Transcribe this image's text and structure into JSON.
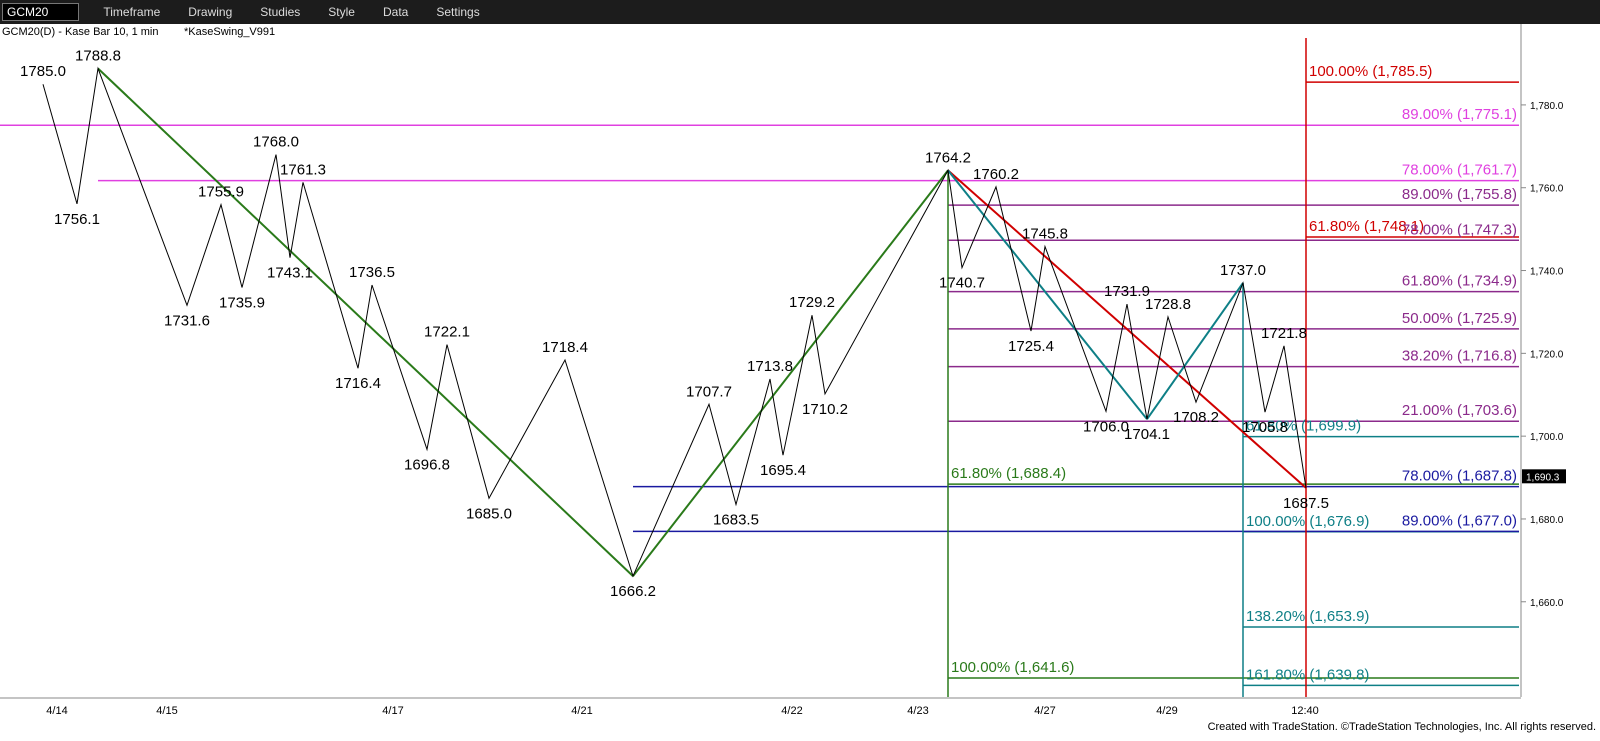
{
  "toolbar": {
    "symbol": "GCM20",
    "items": [
      "Timeframe",
      "Drawing",
      "Studies",
      "Style",
      "Data",
      "Settings"
    ]
  },
  "chart": {
    "title": "GCM20(D) - Kase Bar 10, 1 min",
    "study": "*KaseSwing_V991",
    "ylim": [
      1637,
      1799.3
    ],
    "yticks": [
      {
        "value": 1780,
        "label": "1,780.0"
      },
      {
        "value": 1760,
        "label": "1,760.0"
      },
      {
        "value": 1740,
        "label": "1,740.0"
      },
      {
        "value": 1720,
        "label": "1,720.0"
      },
      {
        "value": 1700,
        "label": "1,700.0"
      },
      {
        "value": 1680,
        "label": "1,680.0"
      },
      {
        "value": 1660,
        "label": "1,660.0"
      }
    ],
    "xlabels": [
      "4/14",
      "4/15",
      "4/17",
      "4/21",
      "4/22",
      "4/23",
      "4/27",
      "4/29",
      "12:40"
    ],
    "last_price": {
      "value": 1690.3,
      "label": "1,690.3"
    },
    "swings": [
      {
        "value": 1785,
        "label": "1785.0"
      },
      1756.1,
      1788.8,
      1731.6,
      1755.9,
      1735.9,
      {
        "value": 1768,
        "label": "1768.0"
      },
      1743.1,
      1761.3,
      1716.4,
      1736.5,
      1696.8,
      1722.1,
      {
        "value": 1685,
        "label": "1685.0"
      },
      1718.4,
      1666.2,
      1707.7,
      1683.5,
      1713.8,
      1695.4,
      1729.2,
      1710.2,
      1764.2,
      1740.7,
      1760.2,
      1725.4,
      1745.8,
      {
        "value": 1706,
        "label": "1706.0"
      },
      1731.9,
      1704.1,
      1728.8,
      1708.2,
      {
        "value": 1737,
        "label": "1737.0"
      },
      1705.8,
      1721.8,
      1687.5
    ],
    "fib_levels": [
      {
        "label": "100.00% (1,785.5)",
        "value": 1785.5,
        "color": "#d00000"
      },
      {
        "label": "89.00% (1,775.1)",
        "value": 1775.1,
        "color": "#e040e0"
      },
      {
        "label": "78.00% (1,761.7)",
        "value": 1761.7,
        "color": "#e040e0"
      },
      {
        "label": "89.00% (1,755.8)",
        "value": 1755.8,
        "color": "#8b2a8b"
      },
      {
        "label": "61.80% (1,748.1)",
        "value": 1748.1,
        "color": "#d00000"
      },
      {
        "label": "78.00% (1,747.3)",
        "value": 1747.3,
        "color": "#8b2a8b"
      },
      {
        "label": "61.80% (1,734.9)",
        "value": 1734.9,
        "color": "#8b2a8b"
      },
      {
        "label": "50.00% (1,725.9)",
        "value": 1725.9,
        "color": "#8b2a8b"
      },
      {
        "label": "38.20% (1,716.8)",
        "value": 1716.8,
        "color": "#8b2a8b"
      },
      {
        "label": "21.00% (1,703.6)",
        "value": 1703.6,
        "color": "#8b2a8b"
      },
      {
        "label": "61.80% (1,699.9)",
        "value": 1699.9,
        "color": "#0e7f86"
      },
      {
        "label": "61.80% (1,688.4)",
        "value": 1688.4,
        "color": "#2a7a1a"
      },
      {
        "label": "78.00% (1,687.8)",
        "value": 1687.8,
        "color": "#1a1aa0"
      },
      {
        "label": "100.00% (1,676.9)",
        "value": 1676.9,
        "color": "#0e7f86"
      },
      {
        "label": "89.00% (1,677.0)",
        "value": 1677.0,
        "color": "#1a1aa0"
      },
      {
        "label": "138.20% (1,653.9)",
        "value": 1653.9,
        "color": "#0e7f86"
      },
      {
        "label": "100.00% (1,641.6)",
        "value": 1641.6,
        "color": "#2a7a1a"
      },
      {
        "label": "161.80% (1,639.8)",
        "value": 1639.8,
        "color": "#0e7f86"
      }
    ]
  },
  "footer": "Created with TradeStation. ©TradeStation Technologies, Inc. All rights reserved."
}
